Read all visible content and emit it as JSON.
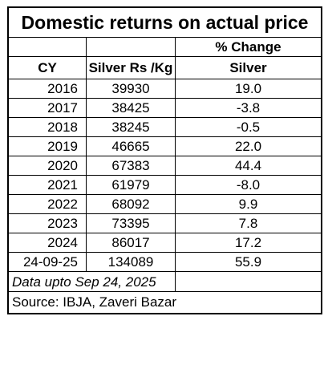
{
  "title": "Domestic returns on actual price",
  "headers": {
    "cy": "CY",
    "silver": "Silver Rs /Kg",
    "change_line1": "% Change",
    "change_line2": "Silver"
  },
  "rows": [
    {
      "cy": "2016",
      "silver": "39930",
      "change": "19.0"
    },
    {
      "cy": "2017",
      "silver": "38425",
      "change": "-3.8"
    },
    {
      "cy": "2018",
      "silver": "38245",
      "change": "-0.5"
    },
    {
      "cy": "2019",
      "silver": "46665",
      "change": "22.0"
    },
    {
      "cy": "2020",
      "silver": "67383",
      "change": "44.4"
    },
    {
      "cy": "2021",
      "silver": "61979",
      "change": "-8.0"
    },
    {
      "cy": "2022",
      "silver": "68092",
      "change": "9.9"
    },
    {
      "cy": "2023",
      "silver": "73395",
      "change": "7.8"
    },
    {
      "cy": "2024",
      "silver": "86017",
      "change": "17.2"
    },
    {
      "cy": "24-09-25",
      "silver": "134089",
      "change": "55.9"
    }
  ],
  "note": "Data upto Sep 24, 2025",
  "source": "Source: IBJA, Zaveri Bazar"
}
